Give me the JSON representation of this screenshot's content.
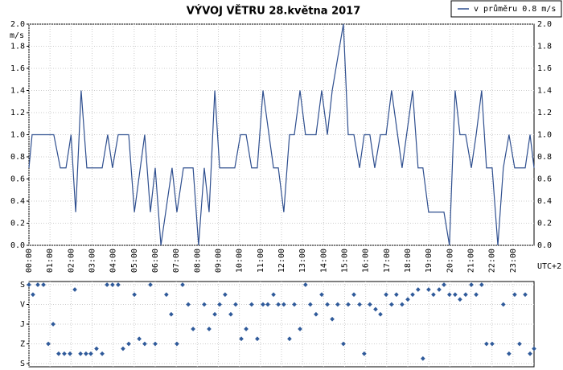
{
  "chart_data": [
    {
      "type": "line",
      "title": "VÝVOJ VĚTRU  28.května 2017",
      "ylabel": "m/s",
      "xlabel": "UTC+2",
      "xlim": [
        0,
        24
      ],
      "xticks": [
        {
          "value": 0,
          "label": "00:00"
        },
        {
          "value": 1,
          "label": "01:00"
        },
        {
          "value": 2,
          "label": "02:00"
        },
        {
          "value": 3,
          "label": "03:00"
        },
        {
          "value": 4,
          "label": "04:00"
        },
        {
          "value": 5,
          "label": "05:00"
        },
        {
          "value": 6,
          "label": "06:00"
        },
        {
          "value": 7,
          "label": "07:00"
        },
        {
          "value": 8,
          "label": "08:00"
        },
        {
          "value": 9,
          "label": "09:00"
        },
        {
          "value": 10,
          "label": "10:00"
        },
        {
          "value": 11,
          "label": "11:00"
        },
        {
          "value": 12,
          "label": "12:00"
        },
        {
          "value": 13,
          "label": "13:00"
        },
        {
          "value": 14,
          "label": "14:00"
        },
        {
          "value": 15,
          "label": "15:00"
        },
        {
          "value": 16,
          "label": "16:00"
        },
        {
          "value": 17,
          "label": "17:00"
        },
        {
          "value": 18,
          "label": "18:00"
        },
        {
          "value": 19,
          "label": "19:00"
        },
        {
          "value": 20,
          "label": "20:00"
        },
        {
          "value": 21,
          "label": "21:00"
        },
        {
          "value": 22,
          "label": "22:00"
        },
        {
          "value": 23,
          "label": "23:00"
        }
      ],
      "ylim": [
        0,
        2
      ],
      "yticks": [
        {
          "value": 0,
          "label": "0.0"
        },
        {
          "value": 0.2,
          "label": "0.2"
        },
        {
          "value": 0.4,
          "label": "0.4"
        },
        {
          "value": 0.6,
          "label": "0.6"
        },
        {
          "value": 0.8,
          "label": "0.8"
        },
        {
          "value": 1,
          "label": "1.0"
        },
        {
          "value": 1.2,
          "label": "1.2"
        },
        {
          "value": 1.4,
          "label": "1.4"
        },
        {
          "value": 1.6,
          "label": "1.6"
        },
        {
          "value": 1.8,
          "label": "1.8"
        },
        {
          "value": 2,
          "label": "2.0"
        }
      ],
      "grid": true,
      "legend": "top-right",
      "series": [
        {
          "name": "v průměru 0.8 m/s",
          "color": "#2f4f8f",
          "x": [
            0,
            0.15,
            1.18,
            1.49,
            1.76,
            2.0,
            2.22,
            2.48,
            2.75,
            3.48,
            3.74,
            3.97,
            4.24,
            4.74,
            5.01,
            5.5,
            5.77,
            6.0,
            6.27,
            6.8,
            7.03,
            7.34,
            7.8,
            8.06,
            8.33,
            8.56,
            8.83,
            9.06,
            9.78,
            10.05,
            10.32,
            10.58,
            10.85,
            11.12,
            11.62,
            11.85,
            12.11,
            12.38,
            12.61,
            12.88,
            13.14,
            13.64,
            13.91,
            14.18,
            14.41,
            14.94,
            15.17,
            15.44,
            15.71,
            15.93,
            16.2,
            16.43,
            16.7,
            16.97,
            17.23,
            17.73,
            18.23,
            18.49,
            18.72,
            18.99,
            19.72,
            19.98,
            20.25,
            20.48,
            20.75,
            21.02,
            21.25,
            21.51,
            21.74,
            22.01,
            22.28,
            22.54,
            22.81,
            23.08,
            23.58,
            23.81,
            24
          ],
          "values": [
            0.7,
            1.0,
            1.0,
            0.7,
            0.7,
            1.0,
            0.3,
            1.4,
            0.7,
            0.7,
            1.0,
            0.7,
            1.0,
            1.0,
            0.3,
            1.0,
            0.3,
            0.7,
            0.0,
            0.7,
            0.3,
            0.7,
            0.7,
            0.0,
            0.7,
            0.3,
            1.4,
            0.7,
            0.7,
            1.0,
            1.0,
            0.7,
            0.7,
            1.4,
            0.7,
            0.7,
            0.3,
            1.0,
            1.0,
            1.4,
            1.0,
            1.0,
            1.4,
            1.0,
            1.4,
            2.0,
            1.0,
            1.0,
            0.7,
            1.0,
            1.0,
            0.7,
            1.0,
            1.0,
            1.4,
            0.7,
            1.4,
            0.7,
            0.7,
            0.3,
            0.3,
            0.0,
            1.4,
            1.0,
            1.0,
            0.7,
            1.0,
            1.4,
            0.7,
            0.7,
            0.0,
            0.7,
            1.0,
            0.7,
            0.7,
            1.0,
            0.7
          ]
        }
      ]
    },
    {
      "type": "scatter",
      "xlim": [
        0,
        24
      ],
      "ylim": [
        0,
        360
      ],
      "y_inverted": true,
      "yticks": [
        {
          "value": 0,
          "label": "S"
        },
        {
          "value": 90,
          "label": "V"
        },
        {
          "value": 180,
          "label": "J"
        },
        {
          "value": 270,
          "label": "Z"
        },
        {
          "value": 360,
          "label": "S"
        }
      ],
      "grid": true,
      "series": [
        {
          "color": "#2f5a9a",
          "x": [
            0,
            0.19,
            0.42,
            0.69,
            0.92,
            1.15,
            1.41,
            1.68,
            1.95,
            2.18,
            2.45,
            2.71,
            2.94,
            3.21,
            3.48,
            3.71,
            3.97,
            4.24,
            4.47,
            4.74,
            5.01,
            5.24,
            5.5,
            5.77,
            6.0,
            6.53,
            6.76,
            7.03,
            7.3,
            7.57,
            7.8,
            8.33,
            8.56,
            8.83,
            9.06,
            9.32,
            9.59,
            9.82,
            10.09,
            10.32,
            10.58,
            10.85,
            11.12,
            11.35,
            11.62,
            11.85,
            12.11,
            12.38,
            12.61,
            12.88,
            13.14,
            13.37,
            13.64,
            13.91,
            14.18,
            14.41,
            14.67,
            14.94,
            15.17,
            15.44,
            15.71,
            15.93,
            16.2,
            16.47,
            16.7,
            16.97,
            17.23,
            17.46,
            17.73,
            18.0,
            18.23,
            18.49,
            18.72,
            18.99,
            19.22,
            19.49,
            19.72,
            19.98,
            20.25,
            20.48,
            20.75,
            21.02,
            21.25,
            21.51,
            21.74,
            22.01,
            22.54,
            22.81,
            23.08,
            23.31,
            23.58,
            23.81,
            24
          ],
          "values": [
            0,
            45,
            0,
            0,
            270,
            180,
            315,
            315,
            315,
            22,
            315,
            315,
            315,
            292,
            315,
            0,
            0,
            0,
            292,
            270,
            45,
            247,
            270,
            0,
            270,
            45,
            135,
            270,
            0,
            90,
            202,
            90,
            202,
            135,
            90,
            45,
            135,
            90,
            247,
            202,
            90,
            247,
            90,
            90,
            45,
            90,
            90,
            247,
            90,
            202,
            0,
            90,
            135,
            45,
            90,
            157,
            90,
            270,
            90,
            45,
            90,
            315,
            90,
            112,
            135,
            45,
            90,
            45,
            90,
            67,
            45,
            22,
            337,
            22,
            45,
            22,
            0,
            45,
            45,
            67,
            45,
            0,
            45,
            0,
            270,
            270,
            90,
            315,
            45,
            270,
            45,
            315,
            292
          ]
        }
      ]
    }
  ]
}
